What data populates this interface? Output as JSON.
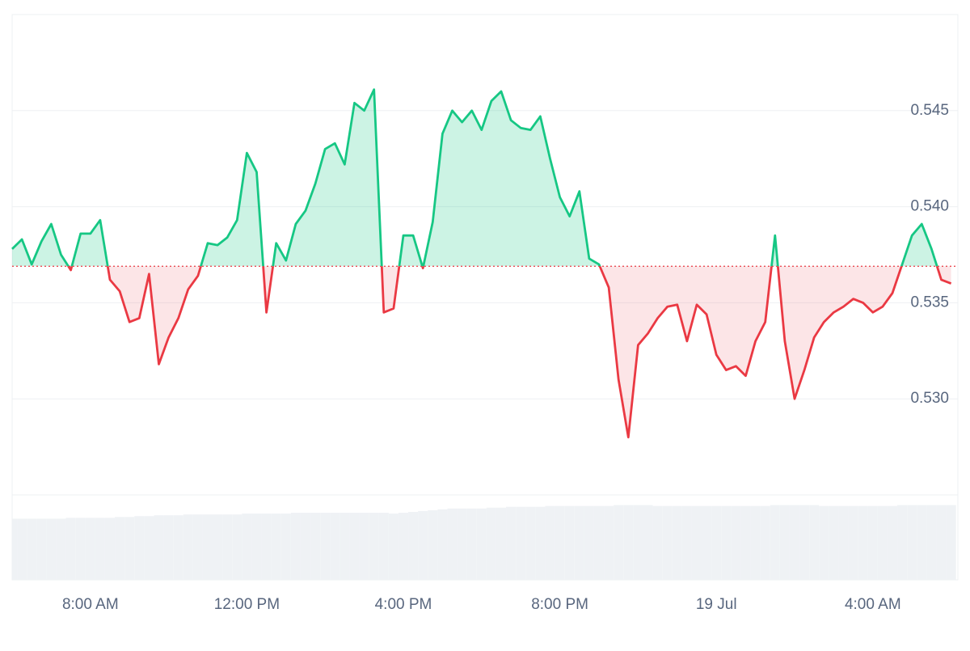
{
  "chart_data": {
    "type": "baseline-line",
    "categories": [
      null,
      null,
      null,
      null,
      null,
      null,
      null,
      null,
      "8:00 AM",
      null,
      null,
      null,
      null,
      null,
      null,
      null,
      null,
      null,
      null,
      null,
      null,
      null,
      null,
      null,
      "12:00 PM",
      null,
      null,
      null,
      null,
      null,
      null,
      null,
      null,
      null,
      null,
      null,
      null,
      null,
      null,
      null,
      "4:00 PM",
      null,
      null,
      null,
      null,
      null,
      null,
      null,
      null,
      null,
      null,
      null,
      null,
      null,
      null,
      null,
      "8:00 PM",
      null,
      null,
      null,
      null,
      null,
      null,
      null,
      null,
      null,
      null,
      null,
      null,
      null,
      null,
      null,
      "19 Jul",
      null,
      null,
      null,
      null,
      null,
      null,
      null,
      null,
      null,
      null,
      null,
      null,
      null,
      null,
      null,
      "4:00 AM",
      null,
      null,
      null,
      null,
      null,
      null,
      null,
      null
    ],
    "values": [
      0.5378,
      0.5383,
      0.537,
      0.5382,
      0.5391,
      0.5375,
      0.5367,
      0.5386,
      0.5386,
      0.5393,
      0.5362,
      0.5356,
      0.534,
      0.5342,
      0.5365,
      0.5318,
      0.5332,
      0.5342,
      0.5357,
      0.5364,
      0.5381,
      0.538,
      0.5384,
      0.5393,
      0.5428,
      0.5418,
      0.5345,
      0.5381,
      0.5372,
      0.5391,
      0.5398,
      0.5412,
      0.543,
      0.5433,
      0.5422,
      0.5454,
      0.545,
      0.5461,
      0.5345,
      0.5347,
      0.5385,
      0.5385,
      0.5368,
      0.5392,
      0.5438,
      0.545,
      0.5444,
      0.545,
      0.544,
      0.5455,
      0.546,
      0.5445,
      0.5441,
      0.544,
      0.5447,
      0.5425,
      0.5405,
      0.5395,
      0.5408,
      0.5373,
      0.537,
      0.5358,
      0.531,
      0.528,
      0.5328,
      0.5334,
      0.5342,
      0.5348,
      0.5349,
      0.533,
      0.5349,
      0.5344,
      0.5323,
      0.5315,
      0.5317,
      0.5312,
      0.533,
      0.534,
      0.5385,
      0.533,
      0.53,
      0.5315,
      0.5332,
      0.534,
      0.5345,
      0.5348,
      0.5352,
      0.535,
      0.5345,
      0.5348,
      0.5355,
      0.537,
      0.5385,
      0.5391,
      0.5378,
      0.5362,
      0.536
    ],
    "baseline": 0.5369,
    "up_color": "#16c784",
    "down_color": "#ea3943",
    "ylim": [
      0.525,
      0.55
    ],
    "yticks": [
      {
        "value": 0.53,
        "label": "0.530"
      },
      0.535,
      {
        "value": 0.54,
        "label": "0.540"
      },
      0.545
    ],
    "grid": true,
    "volume": {
      "color": "#eff2f5",
      "ylim": [
        0,
        100
      ],
      "values": [
        72,
        72,
        72,
        72,
        72,
        72,
        73,
        73,
        73,
        73,
        73,
        74,
        74,
        75,
        75,
        76,
        76,
        76,
        77,
        77,
        77,
        77,
        77,
        77,
        78,
        78,
        78,
        78,
        78,
        79,
        79,
        79,
        79,
        79,
        79,
        79,
        79,
        79,
        79,
        78,
        79,
        80,
        81,
        82,
        83,
        84,
        84,
        84,
        84,
        85,
        85,
        86,
        86,
        86,
        86,
        87,
        87,
        87,
        87,
        87,
        87,
        87,
        88,
        88,
        88,
        88,
        87,
        87,
        87,
        87,
        87,
        87,
        87,
        87,
        87,
        87,
        87,
        87,
        88,
        88,
        88,
        88,
        88,
        87,
        87,
        87,
        87,
        87,
        87,
        87,
        87,
        88,
        88,
        88,
        88,
        88,
        88
      ]
    }
  }
}
